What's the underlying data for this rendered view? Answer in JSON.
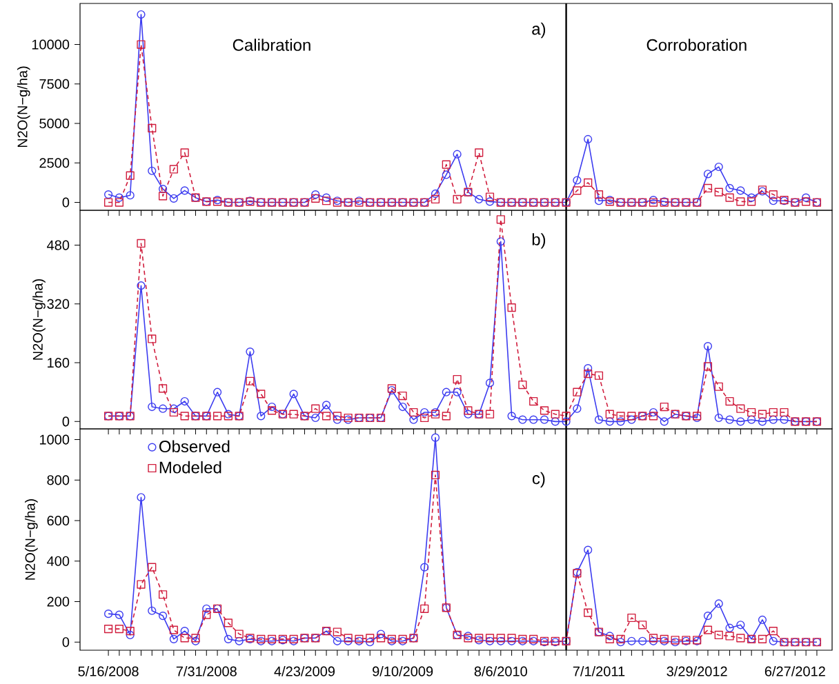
{
  "chart_data": [
    {
      "type": "line",
      "ylabel": "N2O(N−g/ha)",
      "annotations": [
        "a)",
        "Calibration",
        "Corroboration"
      ],
      "categories": [
        null,
        null,
        null,
        null,
        null,
        null,
        null,
        null,
        null,
        null,
        null,
        null,
        null,
        null,
        null,
        null,
        null,
        null,
        null,
        null,
        null,
        null,
        null,
        null,
        null,
        null,
        null,
        null,
        null,
        null,
        null,
        null,
        null,
        null,
        null,
        null,
        null,
        null,
        null,
        null,
        null,
        null,
        null,
        null,
        null,
        null,
        null,
        null,
        null,
        null,
        null,
        null,
        null,
        null,
        null,
        null,
        null,
        null,
        null,
        null,
        null,
        null,
        null,
        null,
        null,
        null
      ],
      "ylim": [
        -500,
        12600
      ],
      "yticks": [
        0,
        2500,
        5000,
        7500,
        10000
      ],
      "series": [
        {
          "color": "#3c3cf0",
          "marker": "circle",
          "line_style": "solid",
          "values": [
            500,
            300,
            450,
            11900,
            2000,
            850,
            250,
            750,
            300,
            50,
            150,
            0,
            0,
            100,
            0,
            0,
            0,
            0,
            0,
            500,
            300,
            100,
            0,
            100,
            0,
            0,
            0,
            0,
            0,
            0,
            550,
            1750,
            3050,
            650,
            200,
            50,
            0,
            0,
            0,
            0,
            0,
            0,
            0,
            1400,
            4000,
            100,
            150,
            0,
            0,
            0,
            150,
            50,
            0,
            0,
            0,
            1800,
            2250,
            900,
            750,
            300,
            700,
            100,
            100,
            0,
            300,
            0
          ]
        },
        {
          "color": "#d01c3c",
          "marker": "square",
          "line_style": "dashed",
          "values": [
            0,
            0,
            1700,
            10000,
            4700,
            400,
            2100,
            3150,
            300,
            50,
            50,
            0,
            0,
            50,
            0,
            0,
            0,
            0,
            0,
            250,
            100,
            0,
            0,
            0,
            0,
            0,
            0,
            0,
            0,
            0,
            200,
            2400,
            200,
            650,
            3150,
            350,
            0,
            0,
            0,
            0,
            0,
            0,
            0,
            750,
            1250,
            500,
            50,
            0,
            0,
            0,
            0,
            0,
            0,
            0,
            0,
            900,
            650,
            300,
            50,
            50,
            800,
            500,
            150,
            0,
            50,
            0
          ]
        }
      ]
    },
    {
      "type": "line",
      "ylabel": "N2O(N−g/ha)",
      "annotations": [
        "b)"
      ],
      "categories": [
        null,
        null,
        null,
        null,
        null,
        null,
        null,
        null,
        null,
        null,
        null,
        null,
        null,
        null,
        null,
        null,
        null,
        null,
        null,
        null,
        null,
        null,
        null,
        null,
        null,
        null,
        null,
        null,
        null,
        null,
        null,
        null,
        null,
        null,
        null,
        null,
        null,
        null,
        null,
        null,
        null,
        null,
        null,
        null,
        null,
        null,
        null,
        null,
        null,
        null,
        null,
        null,
        null,
        null,
        null,
        null,
        null,
        null,
        null,
        null,
        null,
        null,
        null,
        null,
        null,
        null
      ],
      "ylim": [
        -20,
        575
      ],
      "yticks": [
        0,
        160,
        320,
        480
      ],
      "series": [
        {
          "color": "#3c3cf0",
          "marker": "circle",
          "line_style": "solid",
          "values": [
            15,
            15,
            15,
            370,
            40,
            35,
            35,
            55,
            15,
            15,
            80,
            20,
            15,
            190,
            15,
            40,
            20,
            75,
            15,
            10,
            45,
            5,
            5,
            10,
            10,
            10,
            85,
            40,
            5,
            25,
            25,
            80,
            80,
            20,
            20,
            105,
            490,
            15,
            5,
            5,
            5,
            0,
            0,
            35,
            145,
            5,
            0,
            0,
            5,
            15,
            25,
            0,
            20,
            15,
            10,
            205,
            10,
            5,
            0,
            5,
            0,
            5,
            5,
            0,
            0,
            0
          ]
        },
        {
          "color": "#d01c3c",
          "marker": "square",
          "line_style": "dashed",
          "values": [
            15,
            15,
            15,
            485,
            225,
            90,
            25,
            15,
            15,
            15,
            15,
            15,
            15,
            110,
            75,
            30,
            20,
            20,
            15,
            35,
            15,
            15,
            10,
            10,
            10,
            10,
            90,
            70,
            25,
            10,
            20,
            15,
            115,
            30,
            20,
            20,
            550,
            310,
            100,
            55,
            30,
            20,
            15,
            80,
            130,
            125,
            20,
            15,
            15,
            15,
            15,
            40,
            20,
            15,
            15,
            150,
            95,
            55,
            35,
            25,
            20,
            25,
            25,
            0,
            0,
            0
          ]
        }
      ]
    },
    {
      "type": "line",
      "ylabel": "N2O(N−g/ha)",
      "annotations": [
        "c)"
      ],
      "legend": "top left",
      "categories": [
        "5/16/2008",
        null,
        null,
        null,
        null,
        null,
        null,
        null,
        null,
        "7/31/2008",
        null,
        null,
        null,
        null,
        null,
        null,
        null,
        null,
        "4/23/2009",
        null,
        null,
        null,
        null,
        null,
        null,
        null,
        null,
        "9/10/2009",
        null,
        null,
        null,
        null,
        null,
        null,
        null,
        null,
        "8/6/2010",
        null,
        null,
        null,
        null,
        null,
        null,
        null,
        null,
        "7/1/2011",
        null,
        null,
        null,
        null,
        null,
        null,
        null,
        null,
        "3/29/2012",
        null,
        null,
        null,
        null,
        null,
        null,
        null,
        null,
        "6/27/2012",
        null,
        null
      ],
      "ylim": [
        -40,
        1053
      ],
      "yticks": [
        0,
        200,
        400,
        600,
        800,
        1000
      ],
      "series": [
        {
          "name": "Observed",
          "color": "#3c3cf0",
          "marker": "circle",
          "line_style": "solid",
          "values": [
            140,
            135,
            35,
            715,
            155,
            130,
            15,
            55,
            5,
            165,
            165,
            15,
            5,
            15,
            5,
            5,
            10,
            5,
            20,
            20,
            55,
            5,
            5,
            5,
            0,
            40,
            5,
            5,
            20,
            370,
            1010,
            170,
            35,
            30,
            10,
            5,
            5,
            5,
            5,
            5,
            0,
            0,
            5,
            345,
            455,
            50,
            30,
            0,
            5,
            5,
            5,
            5,
            0,
            5,
            5,
            130,
            190,
            70,
            85,
            15,
            110,
            5,
            0,
            0,
            0,
            0
          ]
        },
        {
          "name": "Modeled",
          "color": "#d01c3c",
          "marker": "square",
          "line_style": "dashed",
          "values": [
            65,
            65,
            55,
            285,
            370,
            235,
            60,
            20,
            20,
            135,
            165,
            95,
            40,
            20,
            15,
            15,
            15,
            15,
            20,
            20,
            55,
            50,
            20,
            15,
            20,
            20,
            15,
            15,
            20,
            165,
            825,
            170,
            35,
            20,
            20,
            20,
            20,
            20,
            15,
            15,
            5,
            5,
            5,
            340,
            145,
            50,
            15,
            15,
            120,
            85,
            20,
            15,
            10,
            10,
            10,
            60,
            35,
            30,
            20,
            15,
            15,
            55,
            0,
            0,
            0,
            0
          ]
        }
      ]
    }
  ]
}
